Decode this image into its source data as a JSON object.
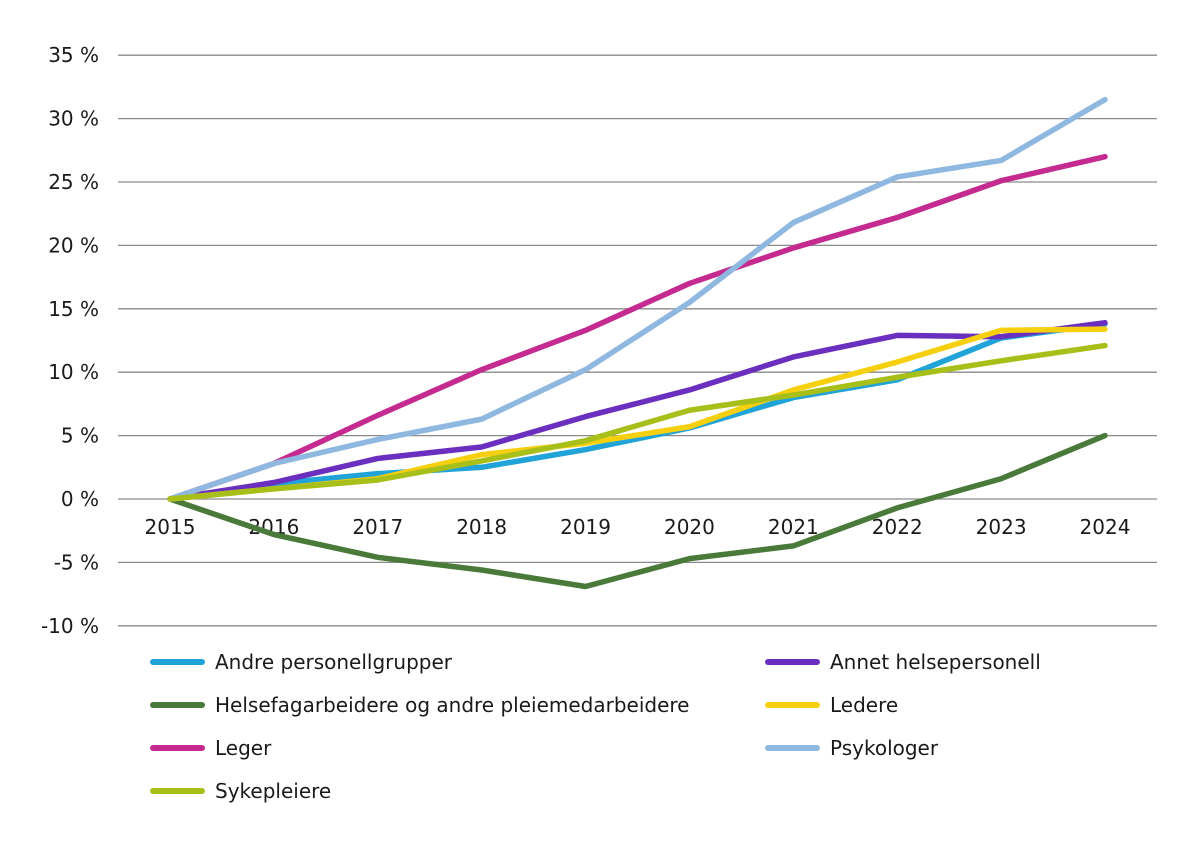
{
  "chart_data": {
    "type": "line",
    "x": [
      "2015",
      "2016",
      "2017",
      "2018",
      "2019",
      "2020",
      "2021",
      "2022",
      "2023",
      "2024"
    ],
    "ylim": [
      -10,
      35
    ],
    "yticks": [
      -10,
      -5,
      0,
      5,
      10,
      15,
      20,
      25,
      30,
      35
    ],
    "ytick_labels": [
      "-10 %",
      "-5 %",
      "0 %",
      "5 %",
      "10 %",
      "15 %",
      "20 %",
      "25 %",
      "30 %",
      "35 %"
    ],
    "grid": true,
    "legend_position": "bottom",
    "series": [
      {
        "name": "Andre personellgrupper",
        "color": "#1fa3d8",
        "values": [
          0,
          1.2,
          2.0,
          2.5,
          3.9,
          5.6,
          8.0,
          9.4,
          12.7,
          13.8
        ]
      },
      {
        "name": "Annet helsepersonell",
        "color": "#6a2fbf",
        "values": [
          0,
          1.3,
          3.2,
          4.1,
          6.5,
          8.6,
          11.2,
          12.9,
          12.8,
          13.9
        ]
      },
      {
        "name": "Helsefagarbeidere og andre pleiemedarbeidere",
        "color": "#4a7a3a",
        "values": [
          0,
          -2.8,
          -4.6,
          -5.6,
          -6.9,
          -4.7,
          -3.7,
          -0.7,
          1.6,
          5.0
        ]
      },
      {
        "name": "Ledere",
        "color": "#f6cf0e",
        "values": [
          0,
          0.8,
          1.6,
          3.5,
          4.4,
          5.7,
          8.6,
          10.8,
          13.3,
          13.4
        ]
      },
      {
        "name": "Leger",
        "color": "#c42a8f",
        "values": [
          0,
          2.8,
          6.6,
          10.2,
          13.3,
          17.0,
          19.8,
          22.2,
          25.1,
          27.0
        ]
      },
      {
        "name": "Psykologer",
        "color": "#8fb8e0",
        "values": [
          0,
          2.8,
          4.7,
          6.3,
          10.2,
          15.5,
          21.8,
          25.4,
          26.7,
          31.5
        ]
      },
      {
        "name": "Sykepleiere",
        "color": "#a8bf1a",
        "values": [
          0,
          0.8,
          1.5,
          3.0,
          4.6,
          7.0,
          8.2,
          9.6,
          10.9,
          12.1
        ]
      }
    ]
  }
}
